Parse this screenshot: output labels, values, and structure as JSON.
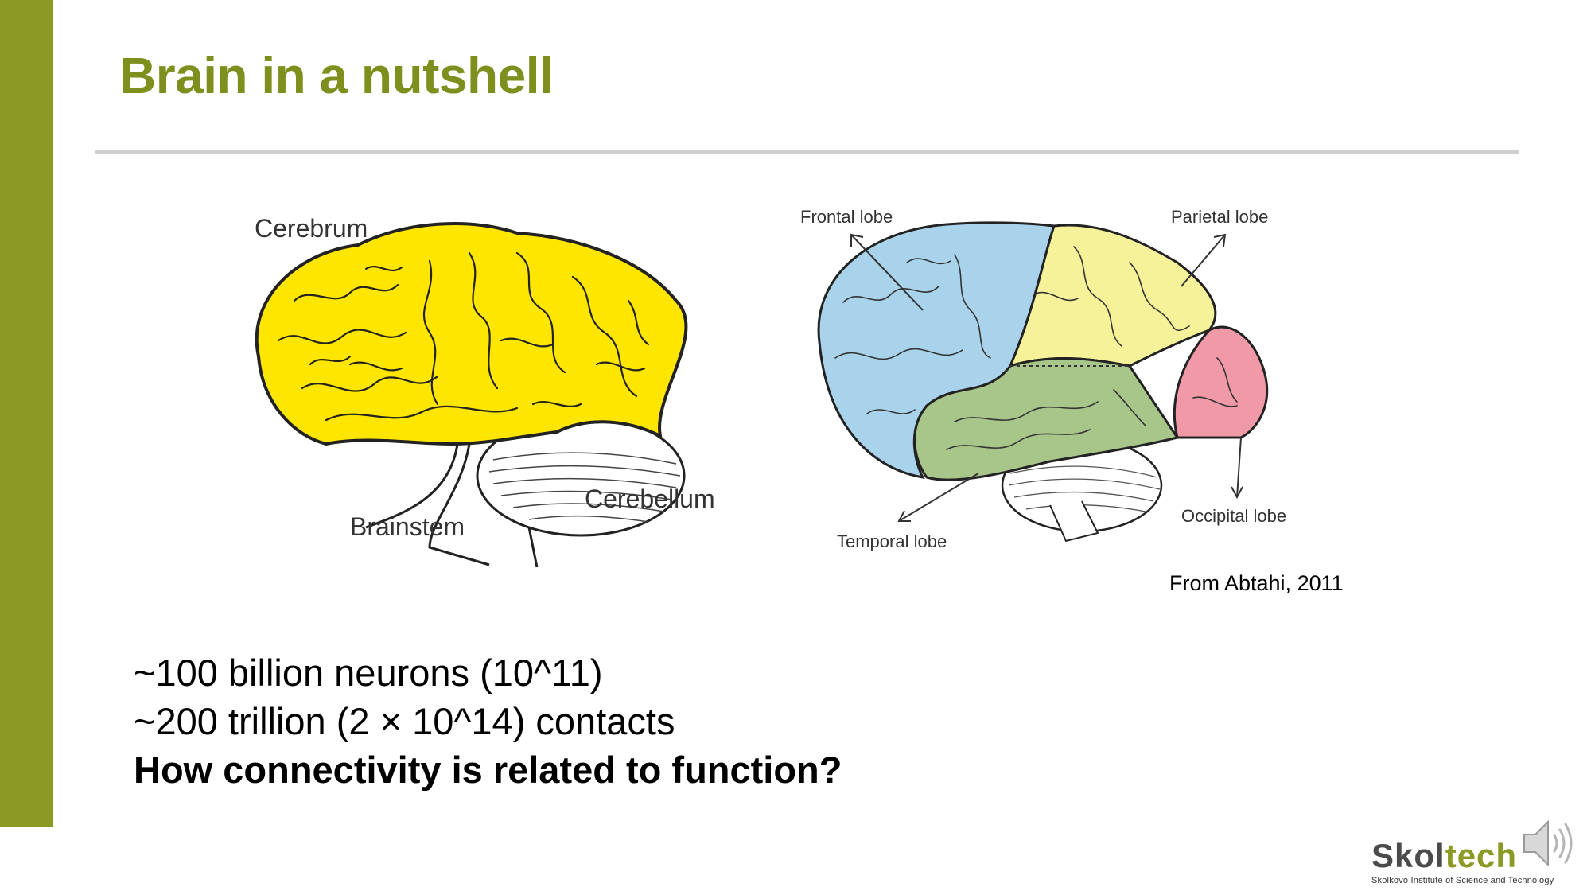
{
  "slide": {
    "title": "Brain in a nutshell",
    "citation": "From Abtahi, 2011",
    "bullets": [
      "~100 billion neurons (10^11)",
      "~200 trillion (2 × 10^14) contacts"
    ],
    "question": "How connectivity is related to function?"
  },
  "figure_left": {
    "labels": {
      "cerebrum": "Cerebrum",
      "cerebellum": "Cerebellum",
      "brainstem": "Brainstem"
    }
  },
  "figure_right": {
    "labels": {
      "frontal": "Frontal lobe",
      "parietal": "Parietal lobe",
      "temporal": "Temporal lobe",
      "occipital": "Occipital lobe"
    }
  },
  "logo": {
    "word_dark": "Skol",
    "word_accent": "tech",
    "subtitle": "Skolkovo Institute of Science and Technology"
  },
  "colors": {
    "accent": "#8b9a24",
    "title": "#7e8f1e",
    "cerebrum": "#ffe600",
    "frontal": "#a9d3ea",
    "parietal": "#f6f29a",
    "temporal": "#a8c68a",
    "occipital": "#f09aa8"
  },
  "icons": {
    "audio": "speaker-icon"
  }
}
